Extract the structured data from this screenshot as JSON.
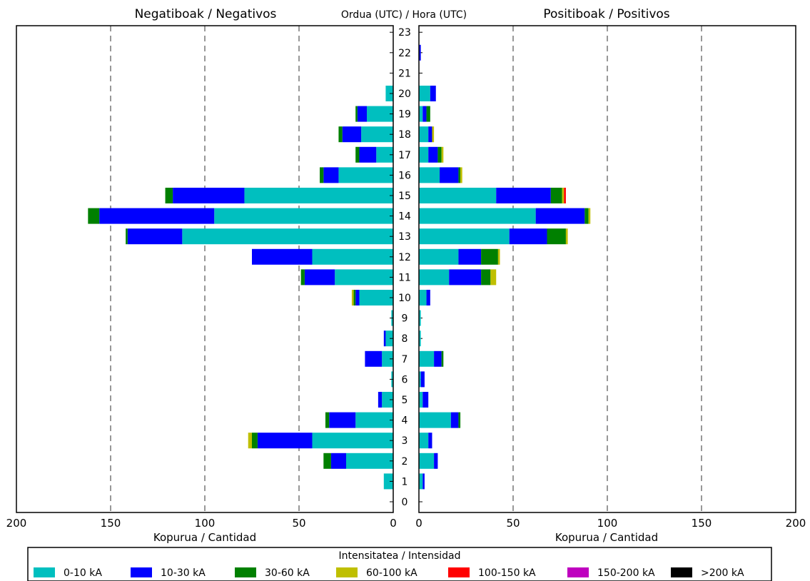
{
  "chart_data": {
    "type": "bar",
    "orientation": "horizontal",
    "stacked": true,
    "center_label": "Ordua (UTC) / Hora (UTC)",
    "hours": [
      "0",
      "1",
      "2",
      "3",
      "4",
      "5",
      "6",
      "7",
      "8",
      "9",
      "10",
      "11",
      "12",
      "13",
      "14",
      "15",
      "16",
      "17",
      "18",
      "19",
      "20",
      "21",
      "22",
      "23"
    ],
    "xlim": [
      0,
      200
    ],
    "x_ticks": [
      "0",
      "50",
      "100",
      "150",
      "200"
    ],
    "grid": "vertical dashed",
    "legend": {
      "title": "Intensitatea / Intensidad",
      "placement": "bottom",
      "entries": [
        {
          "label": "0-10 kA",
          "color": "#00bfbf"
        },
        {
          "label": "10-30 kA",
          "color": "#0000ff"
        },
        {
          "label": "30-60 kA",
          "color": "#008000"
        },
        {
          "label": "60-100 kA",
          "color": "#bfbf00"
        },
        {
          "label": "100-150 kA",
          "color": "#ff0000"
        },
        {
          "label": "150-200 kA",
          "color": "#bf00bf"
        },
        {
          "label": ">200 kA",
          "color": "#000000"
        }
      ]
    },
    "panels": [
      {
        "title": "Negatiboak / Negativos",
        "xlabel": "Kopurua / Cantidad",
        "direction": "left",
        "series": [
          {
            "name": "0-10 kA",
            "values": [
              0,
              5,
              25,
              43,
              20,
              6,
              1,
              6,
              4,
              1,
              18,
              31,
              43,
              112,
              95,
              79,
              29,
              9,
              17,
              14,
              4,
              0,
              0,
              0
            ]
          },
          {
            "name": "10-30 kA",
            "values": [
              0,
              0,
              8,
              29,
              14,
              2,
              0,
              9,
              1,
              0,
              2,
              16,
              32,
              29,
              61,
              38,
              8,
              9,
              10,
              5,
              0,
              0,
              0,
              0
            ]
          },
          {
            "name": "30-60 kA",
            "values": [
              0,
              0,
              4,
              3,
              2,
              0,
              0,
              0,
              0,
              0,
              1,
              2,
              0,
              1,
              6,
              4,
              2,
              2,
              2,
              1,
              0,
              0,
              0,
              0
            ]
          },
          {
            "name": "60-100 kA",
            "values": [
              0,
              0,
              0,
              2,
              0,
              0,
              0,
              0,
              0,
              0,
              1,
              0,
              0,
              0,
              0,
              0,
              0,
              0,
              0,
              0,
              0,
              0,
              0,
              0
            ]
          },
          {
            "name": "100-150 kA",
            "values": [
              0,
              0,
              0,
              0,
              0,
              0,
              0,
              0,
              0,
              0,
              0,
              0,
              0,
              0,
              0,
              0,
              0,
              0,
              0,
              0,
              0,
              0,
              0,
              0
            ]
          },
          {
            "name": "150-200 kA",
            "values": [
              0,
              0,
              0,
              0,
              0,
              0,
              0,
              0,
              0,
              0,
              0,
              0,
              0,
              0,
              0,
              0,
              0,
              0,
              0,
              0,
              0,
              0,
              0,
              0
            ]
          },
          {
            "name": ">200 kA",
            "values": [
              0,
              0,
              0,
              0,
              0,
              0,
              0,
              0,
              0,
              0,
              0,
              0,
              0,
              0,
              0,
              0,
              0,
              0,
              0,
              0,
              0,
              0,
              0,
              0
            ]
          }
        ]
      },
      {
        "title": "Positiboak / Positivos",
        "xlabel": "Kopurua / Cantidad",
        "direction": "right",
        "series": [
          {
            "name": "0-10 kA",
            "values": [
              0,
              2,
              8,
              5,
              17,
              2,
              1,
              8,
              1,
              1,
              4,
              16,
              21,
              48,
              62,
              41,
              11,
              5,
              5,
              2,
              6,
              0,
              0,
              0
            ]
          },
          {
            "name": "10-30 kA",
            "values": [
              0,
              1,
              2,
              2,
              4,
              3,
              2,
              4,
              0,
              0,
              2,
              17,
              12,
              20,
              26,
              29,
              10,
              5,
              2,
              2,
              3,
              0,
              1,
              0
            ]
          },
          {
            "name": "30-60 kA",
            "values": [
              0,
              0,
              0,
              0,
              1,
              0,
              0,
              1,
              0,
              0,
              0,
              5,
              9,
              10,
              2,
              6,
              1,
              2,
              0,
              2,
              0,
              0,
              0,
              0
            ]
          },
          {
            "name": "60-100 kA",
            "values": [
              0,
              0,
              0,
              0,
              0,
              0,
              0,
              0,
              0,
              0,
              0,
              3,
              1,
              1,
              1,
              1,
              1,
              1,
              1,
              0,
              0,
              0,
              0,
              0
            ]
          },
          {
            "name": "100-150 kA",
            "values": [
              0,
              0,
              0,
              0,
              0,
              0,
              0,
              0,
              0,
              0,
              0,
              0,
              0,
              0,
              0,
              1,
              0,
              0,
              0,
              0,
              0,
              0,
              0,
              0
            ]
          },
          {
            "name": "150-200 kA",
            "values": [
              0,
              0,
              0,
              0,
              0,
              0,
              0,
              0,
              0,
              0,
              0,
              0,
              0,
              0,
              0,
              0,
              0,
              0,
              0,
              0,
              0,
              0,
              0,
              0
            ]
          },
          {
            "name": ">200 kA",
            "values": [
              0,
              0,
              0,
              0,
              0,
              0,
              0,
              0,
              0,
              0,
              0,
              0,
              0,
              0,
              0,
              0,
              0,
              0,
              0,
              0,
              0,
              0,
              0,
              0
            ]
          }
        ]
      }
    ]
  }
}
